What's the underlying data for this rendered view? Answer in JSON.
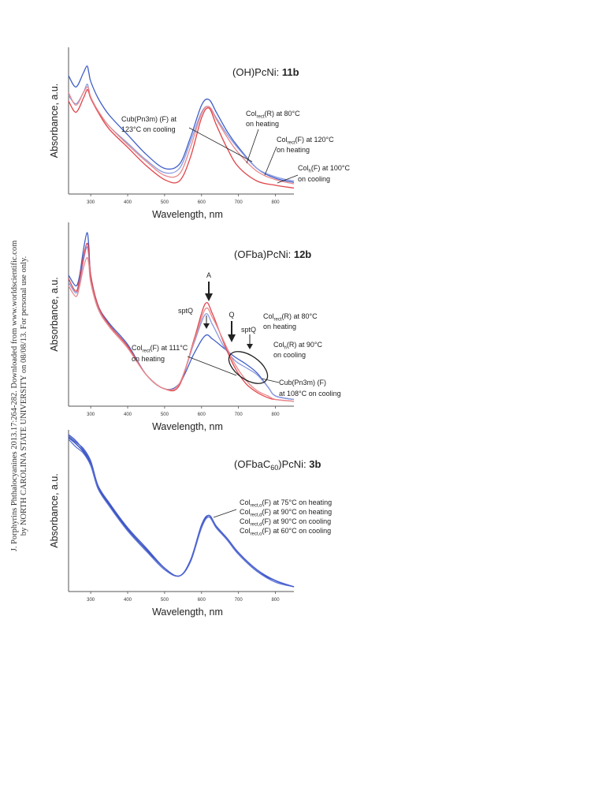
{
  "side_note": {
    "line1": "J. Porphyrins Phthalocyanines 2013.17:264-282. Downloaded from www.worldscientific.com",
    "line2": "by NORTH CAROLINA STATE UNIVERSITY on 08/08/13. For personal use only."
  },
  "colors": {
    "red": "#e0454a",
    "pink": "#e8898c",
    "blue": "#3f5ec9",
    "lightblue": "#8a9ae0",
    "darkred": "#b83040"
  },
  "chart_data": [
    {
      "type": "line",
      "title_prefix": "(OH)PcNi: ",
      "title_bold": "11b",
      "xlabel": "Wavelength, nm",
      "ylabel": "Absorbance, a.u.",
      "xlim": [
        240,
        850
      ],
      "xticks": [
        300,
        400,
        500,
        600,
        700,
        800
      ],
      "ylim": [
        0,
        1
      ],
      "grid": false,
      "series": [
        {
          "color": "#3f5ec9",
          "x": [
            240,
            260,
            280,
            290,
            295,
            300,
            320,
            350,
            400,
            450,
            500,
            540,
            570,
            600,
            620,
            640,
            670,
            700,
            750,
            800,
            850
          ],
          "y": [
            0.82,
            0.74,
            0.84,
            0.89,
            0.84,
            0.78,
            0.66,
            0.54,
            0.4,
            0.26,
            0.16,
            0.19,
            0.38,
            0.61,
            0.65,
            0.56,
            0.42,
            0.31,
            0.16,
            0.09,
            0.06
          ]
        },
        {
          "color": "#8a9ae0",
          "x": [
            240,
            260,
            280,
            290,
            295,
            300,
            320,
            350,
            400,
            450,
            500,
            540,
            570,
            600,
            620,
            640,
            670,
            700,
            750,
            800,
            850
          ],
          "y": [
            0.68,
            0.62,
            0.7,
            0.76,
            0.72,
            0.66,
            0.57,
            0.46,
            0.34,
            0.22,
            0.13,
            0.16,
            0.35,
            0.56,
            0.6,
            0.52,
            0.4,
            0.3,
            0.16,
            0.1,
            0.07
          ]
        },
        {
          "color": "#e0454a",
          "x": [
            240,
            260,
            280,
            290,
            295,
            300,
            320,
            350,
            400,
            450,
            500,
            540,
            570,
            600,
            620,
            640,
            670,
            700,
            750,
            800,
            850
          ],
          "y": [
            0.64,
            0.56,
            0.66,
            0.72,
            0.7,
            0.66,
            0.56,
            0.44,
            0.31,
            0.18,
            0.08,
            0.07,
            0.24,
            0.52,
            0.59,
            0.47,
            0.3,
            0.17,
            0.07,
            0.04,
            0.02
          ]
        },
        {
          "color": "#e8898c",
          "x": [
            240,
            260,
            280,
            290,
            295,
            300,
            320,
            350,
            400,
            450,
            500,
            540,
            570,
            600,
            620,
            640,
            670,
            700,
            750,
            800,
            850
          ],
          "y": [
            0.7,
            0.61,
            0.7,
            0.74,
            0.72,
            0.67,
            0.57,
            0.46,
            0.33,
            0.21,
            0.11,
            0.12,
            0.31,
            0.55,
            0.6,
            0.51,
            0.38,
            0.27,
            0.14,
            0.08,
            0.05
          ]
        }
      ],
      "annotations": [
        {
          "text": [
            "Cub(Pn3m) (F) at",
            "123°C on cooling"
          ]
        },
        {
          "rich": [
            [
              "Col",
              "rect",
              "(R) at 80°C"
            ]
          ],
          "text2": "on heating"
        },
        {
          "rich": [
            [
              "Col",
              "rect",
              "(F) at 120°C"
            ]
          ],
          "text2": "on heating"
        },
        {
          "rich": [
            [
              "Col",
              "h",
              "(F) at 100°C"
            ]
          ],
          "text2": "on cooling"
        }
      ]
    },
    {
      "type": "line",
      "title_prefix": "(OFba)PcNi: ",
      "title_bold": "12b",
      "xlabel": "Wavelength, nm",
      "ylabel": "Absorbance, a.u.",
      "xlim": [
        240,
        850
      ],
      "xticks": [
        300,
        400,
        500,
        600,
        700,
        800
      ],
      "ylim": [
        0,
        1
      ],
      "grid": false,
      "series": [
        {
          "color": "#3f5ec9",
          "x": [
            240,
            260,
            270,
            280,
            290,
            295,
            300,
            320,
            350,
            400,
            450,
            500,
            540,
            580,
            610,
            630,
            660,
            690,
            720,
            750,
            780,
            800,
            850
          ],
          "y": [
            0.72,
            0.66,
            0.72,
            0.86,
            0.96,
            0.88,
            0.72,
            0.55,
            0.45,
            0.33,
            0.16,
            0.08,
            0.11,
            0.28,
            0.38,
            0.36,
            0.31,
            0.26,
            0.22,
            0.17,
            0.09,
            0.04,
            0.02
          ]
        },
        {
          "color": "#8a9ae0",
          "x": [
            240,
            260,
            270,
            280,
            290,
            295,
            300,
            320,
            350,
            400,
            450,
            500,
            540,
            580,
            610,
            630,
            660,
            690,
            720,
            750,
            780,
            800,
            850
          ],
          "y": [
            0.68,
            0.62,
            0.68,
            0.8,
            0.88,
            0.82,
            0.7,
            0.54,
            0.44,
            0.32,
            0.16,
            0.08,
            0.11,
            0.34,
            0.5,
            0.44,
            0.32,
            0.24,
            0.2,
            0.16,
            0.09,
            0.04,
            0.02
          ]
        },
        {
          "color": "#e0454a",
          "x": [
            240,
            260,
            270,
            280,
            290,
            295,
            300,
            320,
            350,
            400,
            450,
            500,
            540,
            580,
            610,
            630,
            660,
            690,
            720,
            750,
            780,
            800,
            850
          ],
          "y": [
            0.7,
            0.63,
            0.7,
            0.82,
            0.9,
            0.85,
            0.72,
            0.55,
            0.44,
            0.32,
            0.16,
            0.08,
            0.1,
            0.36,
            0.56,
            0.5,
            0.34,
            0.2,
            0.11,
            0.06,
            0.03,
            0.02,
            0.01
          ]
        },
        {
          "color": "#e8898c",
          "x": [
            240,
            260,
            270,
            280,
            290,
            295,
            300,
            320,
            350,
            400,
            450,
            500,
            540,
            580,
            610,
            630,
            660,
            690,
            720,
            750,
            780,
            800,
            850
          ],
          "y": [
            0.66,
            0.6,
            0.66,
            0.76,
            0.82,
            0.78,
            0.68,
            0.53,
            0.43,
            0.31,
            0.16,
            0.08,
            0.11,
            0.35,
            0.53,
            0.48,
            0.35,
            0.22,
            0.13,
            0.07,
            0.04,
            0.02,
            0.01
          ]
        }
      ],
      "annotations": [
        {
          "text": [
            "A"
          ]
        },
        {
          "text": [
            "sptQ"
          ]
        },
        {
          "text": [
            "Q"
          ]
        },
        {
          "text": [
            "sptQ"
          ]
        },
        {
          "rich": [
            [
              "Col",
              "rect",
              "(R) at 80°C"
            ]
          ],
          "text2": "on heating"
        },
        {
          "rich": [
            [
              "Col",
              "h",
              "(R) at 90°C"
            ]
          ],
          "text2": "on cooling"
        },
        {
          "rich": [
            [
              "Col",
              "rect",
              "(F) at 111°C"
            ]
          ],
          "text2": "on heating"
        },
        {
          "text": [
            "Cub(Pn3m) (F)",
            "at 108°C on cooling"
          ]
        }
      ]
    },
    {
      "type": "line",
      "title_prefix": "(OFbaC",
      "title_sub": "60",
      "title_suffix": ")PcNi: ",
      "title_bold": "3b",
      "xlabel": "Wavelength, nm",
      "ylabel": "Absorbance, a.u.",
      "xlim": [
        240,
        850
      ],
      "xticks": [
        300,
        400,
        500,
        600,
        700,
        800
      ],
      "ylim": [
        0,
        1
      ],
      "grid": false,
      "series": [
        {
          "color": "#3f5ec9",
          "x": [
            240,
            260,
            280,
            300,
            320,
            350,
            400,
            450,
            500,
            540,
            570,
            600,
            620,
            640,
            670,
            700,
            750,
            800,
            850
          ],
          "y": [
            0.98,
            0.94,
            0.9,
            0.82,
            0.66,
            0.55,
            0.39,
            0.26,
            0.13,
            0.08,
            0.18,
            0.4,
            0.47,
            0.4,
            0.32,
            0.23,
            0.12,
            0.05,
            0.01
          ]
        },
        {
          "color": "#2f48b8",
          "x": [
            240,
            260,
            280,
            300,
            320,
            350,
            400,
            450,
            500,
            540,
            570,
            600,
            620,
            640,
            670,
            700,
            750,
            800,
            850
          ],
          "y": [
            0.97,
            0.93,
            0.88,
            0.8,
            0.65,
            0.54,
            0.38,
            0.25,
            0.13,
            0.08,
            0.18,
            0.4,
            0.46,
            0.39,
            0.31,
            0.22,
            0.11,
            0.05,
            0.01
          ]
        },
        {
          "color": "#5a72d6",
          "x": [
            240,
            260,
            280,
            300,
            320,
            350,
            400,
            450,
            500,
            540,
            570,
            600,
            620,
            640,
            670,
            700,
            750,
            800,
            850
          ],
          "y": [
            0.96,
            0.91,
            0.87,
            0.79,
            0.64,
            0.53,
            0.37,
            0.24,
            0.12,
            0.08,
            0.17,
            0.39,
            0.46,
            0.39,
            0.31,
            0.22,
            0.11,
            0.04,
            0.01
          ]
        },
        {
          "color": "#4a5fcf",
          "x": [
            240,
            260,
            280,
            300,
            320,
            350,
            400,
            450,
            500,
            540,
            570,
            600,
            620,
            640,
            670,
            700,
            750,
            800,
            850
          ],
          "y": [
            0.99,
            0.95,
            0.89,
            0.81,
            0.66,
            0.55,
            0.39,
            0.26,
            0.13,
            0.08,
            0.18,
            0.41,
            0.47,
            0.4,
            0.32,
            0.23,
            0.12,
            0.05,
            0.01
          ]
        }
      ],
      "annotations": [
        {
          "rich": [
            [
              "Col",
              "rect,o",
              "(F) at 75°C on heating"
            ]
          ]
        },
        {
          "rich": [
            [
              "Col",
              "rect,d",
              "(F) at 90°C on heating"
            ]
          ]
        },
        {
          "rich": [
            [
              "Col",
              "rect,d",
              "(F) at 90°C on cooling"
            ]
          ]
        },
        {
          "rich": [
            [
              "Col",
              "rect,o",
              "(F) at 60°C on cooling"
            ]
          ]
        }
      ]
    }
  ]
}
